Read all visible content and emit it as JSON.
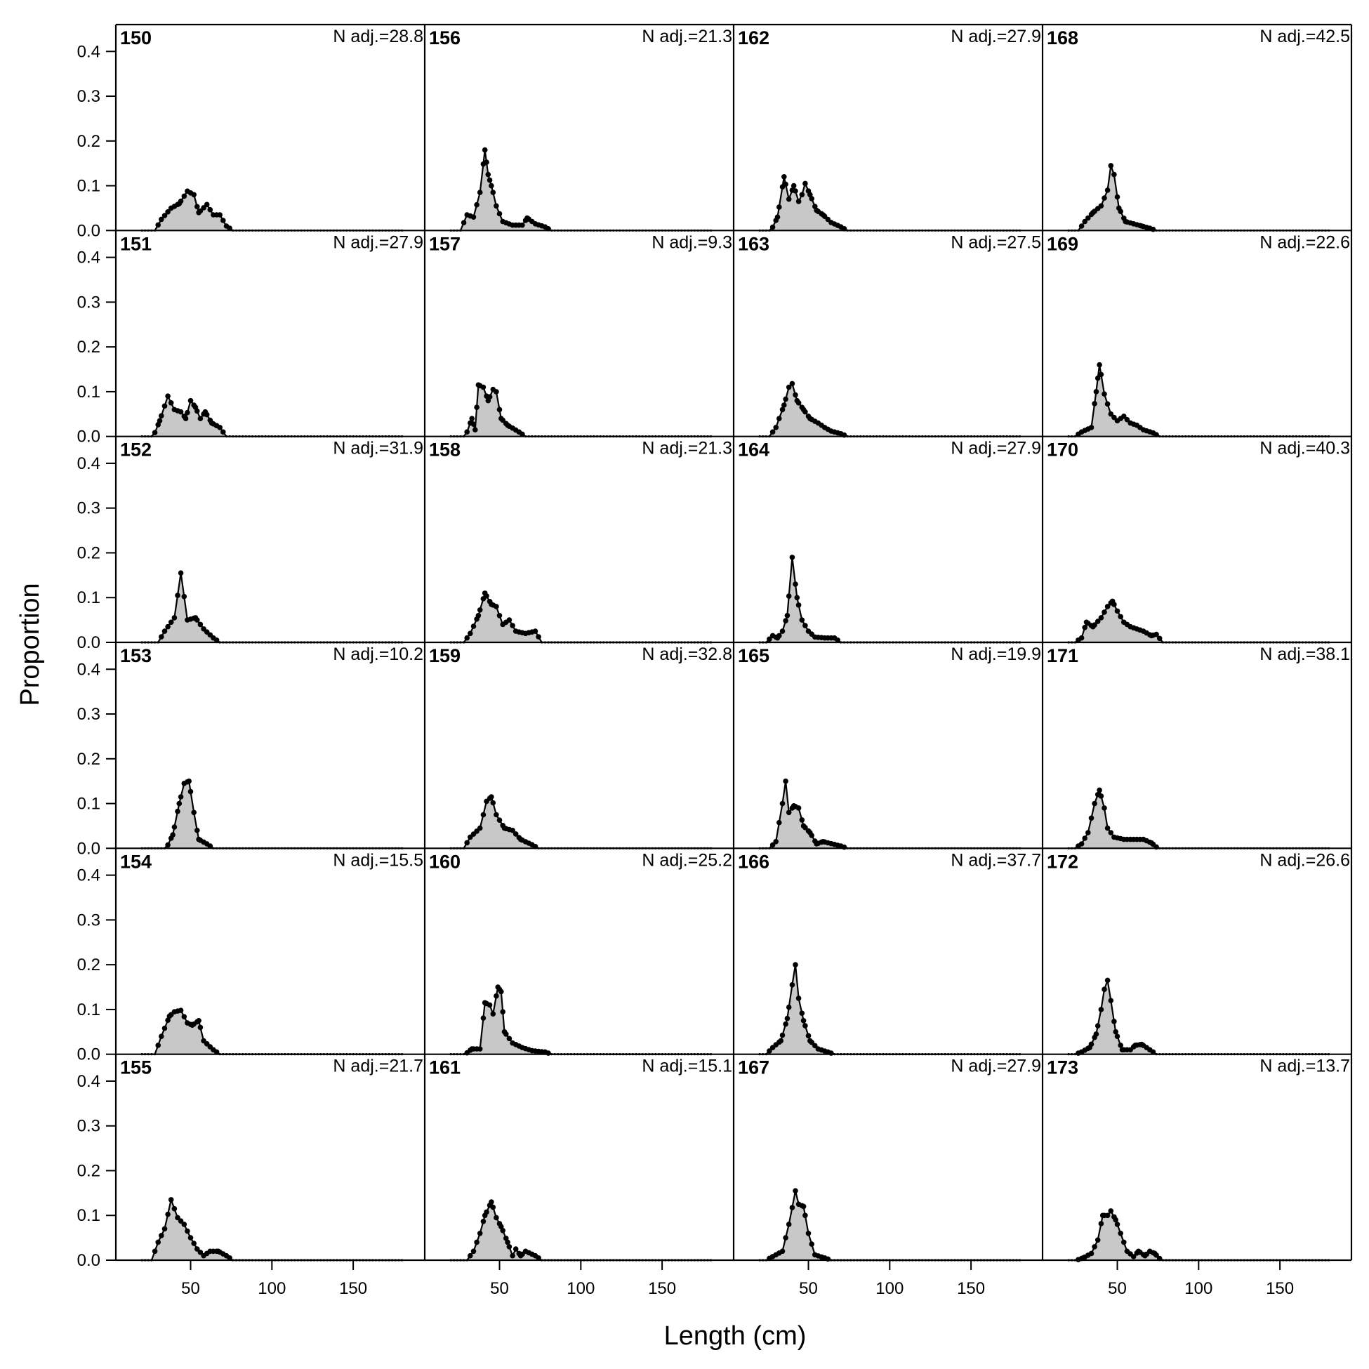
{
  "chart_data": {
    "type": "area",
    "xlabel": "Length (cm)",
    "ylabel": "Proportion",
    "xlim": [
      4,
      194
    ],
    "ylim": [
      0,
      0.46
    ],
    "x_ticks": [
      50,
      100,
      150
    ],
    "y_ticks": [
      0.0,
      0.1,
      0.2,
      0.3,
      0.4
    ],
    "x_tick_labels": [
      "50",
      "100",
      "150"
    ],
    "y_tick_labels": [
      "0.0",
      "0.1",
      "0.2",
      "0.3",
      "0.4"
    ],
    "layout": "6 rows x 4 columns, panels ordered down columns",
    "grid": false,
    "colors": {
      "fill": "#c8c8c8",
      "line": "#000000"
    },
    "panels": [
      {
        "label": "150",
        "n_adj": "N adj.=28.8",
        "peaks": [
          [
            32,
            0.025
          ],
          [
            38,
            0.05
          ],
          [
            43,
            0.06
          ],
          [
            48,
            0.088
          ],
          [
            52,
            0.08
          ],
          [
            55,
            0.04
          ],
          [
            60,
            0.058
          ],
          [
            64,
            0.035
          ],
          [
            68,
            0.035
          ],
          [
            72,
            0.01
          ]
        ]
      },
      {
        "label": "151",
        "n_adj": "N adj.=27.9",
        "peaks": [
          [
            31,
            0.035
          ],
          [
            36,
            0.09
          ],
          [
            40,
            0.06
          ],
          [
            44,
            0.055
          ],
          [
            47,
            0.04
          ],
          [
            50,
            0.08
          ],
          [
            53,
            0.065
          ],
          [
            56,
            0.04
          ],
          [
            59,
            0.055
          ],
          [
            63,
            0.03
          ],
          [
            68,
            0.02
          ]
        ]
      },
      {
        "label": "152",
        "n_adj": "N adj.=31.9",
        "peaks": [
          [
            34,
            0.025
          ],
          [
            40,
            0.055
          ],
          [
            44,
            0.155
          ],
          [
            48,
            0.05
          ],
          [
            53,
            0.055
          ],
          [
            58,
            0.03
          ],
          [
            64,
            0.01
          ]
        ]
      },
      {
        "label": "153",
        "n_adj": "N adj.=10.2",
        "peaks": [
          [
            39,
            0.03
          ],
          [
            43,
            0.1
          ],
          [
            46,
            0.145
          ],
          [
            49,
            0.15
          ],
          [
            52,
            0.08
          ],
          [
            55,
            0.02
          ],
          [
            60,
            0.01
          ]
        ]
      },
      {
        "label": "154",
        "n_adj": "N adj.=15.5",
        "peaks": [
          [
            32,
            0.04
          ],
          [
            37,
            0.085
          ],
          [
            40,
            0.095
          ],
          [
            44,
            0.098
          ],
          [
            48,
            0.07
          ],
          [
            51,
            0.065
          ],
          [
            55,
            0.075
          ],
          [
            58,
            0.03
          ],
          [
            64,
            0.01
          ]
        ]
      },
      {
        "label": "155",
        "n_adj": "N adj.=21.7",
        "peaks": [
          [
            30,
            0.04
          ],
          [
            34,
            0.07
          ],
          [
            38,
            0.135
          ],
          [
            42,
            0.095
          ],
          [
            46,
            0.08
          ],
          [
            50,
            0.05
          ],
          [
            54,
            0.025
          ],
          [
            58,
            0.01
          ],
          [
            62,
            0.02
          ],
          [
            67,
            0.02
          ],
          [
            72,
            0.01
          ]
        ]
      },
      {
        "label": "156",
        "n_adj": "N adj.=21.3",
        "peaks": [
          [
            30,
            0.035
          ],
          [
            34,
            0.03
          ],
          [
            38,
            0.085
          ],
          [
            41,
            0.18
          ],
          [
            43,
            0.125
          ],
          [
            45,
            0.1
          ],
          [
            48,
            0.055
          ],
          [
            52,
            0.02
          ],
          [
            58,
            0.012
          ],
          [
            64,
            0.012
          ],
          [
            67,
            0.028
          ],
          [
            72,
            0.015
          ],
          [
            78,
            0.008
          ]
        ]
      },
      {
        "label": "157",
        "n_adj": "N adj.=9.3",
        "peaks": [
          [
            33,
            0.04
          ],
          [
            35,
            0.015
          ],
          [
            37,
            0.115
          ],
          [
            40,
            0.11
          ],
          [
            43,
            0.08
          ],
          [
            46,
            0.105
          ],
          [
            48,
            0.1
          ],
          [
            51,
            0.04
          ],
          [
            55,
            0.025
          ],
          [
            62,
            0.01
          ]
        ]
      },
      {
        "label": "158",
        "n_adj": "N adj.=21.3",
        "peaks": [
          [
            32,
            0.02
          ],
          [
            37,
            0.06
          ],
          [
            41,
            0.11
          ],
          [
            45,
            0.085
          ],
          [
            48,
            0.08
          ],
          [
            52,
            0.04
          ],
          [
            56,
            0.05
          ],
          [
            60,
            0.025
          ],
          [
            66,
            0.02
          ],
          [
            72,
            0.025
          ]
        ]
      },
      {
        "label": "159",
        "n_adj": "N adj.=32.8",
        "peaks": [
          [
            32,
            0.025
          ],
          [
            38,
            0.045
          ],
          [
            42,
            0.105
          ],
          [
            45,
            0.115
          ],
          [
            48,
            0.075
          ],
          [
            53,
            0.045
          ],
          [
            58,
            0.04
          ],
          [
            63,
            0.02
          ],
          [
            70,
            0.008
          ]
        ]
      },
      {
        "label": "160",
        "n_adj": "N adj.=25.2",
        "peaks": [
          [
            33,
            0.012
          ],
          [
            38,
            0.012
          ],
          [
            41,
            0.115
          ],
          [
            44,
            0.11
          ],
          [
            46,
            0.09
          ],
          [
            49,
            0.15
          ],
          [
            51,
            0.14
          ],
          [
            53,
            0.05
          ],
          [
            58,
            0.025
          ],
          [
            64,
            0.015
          ],
          [
            70,
            0.008
          ],
          [
            78,
            0.005
          ]
        ]
      },
      {
        "label": "161",
        "n_adj": "N adj.=15.1",
        "peaks": [
          [
            34,
            0.02
          ],
          [
            38,
            0.06
          ],
          [
            41,
            0.1
          ],
          [
            45,
            0.13
          ],
          [
            48,
            0.095
          ],
          [
            51,
            0.075
          ],
          [
            55,
            0.04
          ],
          [
            58,
            0.01
          ],
          [
            60,
            0.025
          ],
          [
            63,
            0.01
          ],
          [
            66,
            0.02
          ],
          [
            72,
            0.01
          ]
        ]
      },
      {
        "label": "162",
        "n_adj": "N adj.=27.9",
        "peaks": [
          [
            31,
            0.03
          ],
          [
            35,
            0.12
          ],
          [
            38,
            0.07
          ],
          [
            41,
            0.1
          ],
          [
            44,
            0.065
          ],
          [
            46,
            0.08
          ],
          [
            48,
            0.105
          ],
          [
            51,
            0.08
          ],
          [
            55,
            0.045
          ],
          [
            59,
            0.035
          ],
          [
            64,
            0.018
          ],
          [
            70,
            0.008
          ]
        ]
      },
      {
        "label": "163",
        "n_adj": "N adj.=27.5",
        "peaks": [
          [
            30,
            0.02
          ],
          [
            35,
            0.07
          ],
          [
            38,
            0.11
          ],
          [
            40,
            0.118
          ],
          [
            43,
            0.08
          ],
          [
            47,
            0.06
          ],
          [
            51,
            0.04
          ],
          [
            56,
            0.03
          ],
          [
            60,
            0.02
          ],
          [
            64,
            0.012
          ],
          [
            70,
            0.006
          ]
        ]
      },
      {
        "label": "164",
        "n_adj": "N adj.=27.9",
        "peaks": [
          [
            28,
            0.015
          ],
          [
            31,
            0.01
          ],
          [
            34,
            0.025
          ],
          [
            37,
            0.06
          ],
          [
            40,
            0.19
          ],
          [
            43,
            0.1
          ],
          [
            46,
            0.05
          ],
          [
            50,
            0.025
          ],
          [
            54,
            0.012
          ],
          [
            60,
            0.01
          ],
          [
            66,
            0.01
          ]
        ]
      },
      {
        "label": "165",
        "n_adj": "N adj.=19.9",
        "peaks": [
          [
            30,
            0.015
          ],
          [
            34,
            0.1
          ],
          [
            36,
            0.15
          ],
          [
            38,
            0.08
          ],
          [
            41,
            0.095
          ],
          [
            44,
            0.09
          ],
          [
            47,
            0.05
          ],
          [
            51,
            0.035
          ],
          [
            55,
            0.01
          ],
          [
            59,
            0.015
          ],
          [
            70,
            0.005
          ]
        ]
      },
      {
        "label": "166",
        "n_adj": "N adj.=37.7",
        "peaks": [
          [
            28,
            0.015
          ],
          [
            33,
            0.03
          ],
          [
            37,
            0.08
          ],
          [
            40,
            0.155
          ],
          [
            42,
            0.2
          ],
          [
            44,
            0.125
          ],
          [
            47,
            0.075
          ],
          [
            51,
            0.03
          ],
          [
            56,
            0.012
          ],
          [
            62,
            0.005
          ]
        ]
      },
      {
        "label": "167",
        "n_adj": "N adj.=27.9",
        "peaks": [
          [
            28,
            0.008
          ],
          [
            34,
            0.02
          ],
          [
            38,
            0.08
          ],
          [
            42,
            0.155
          ],
          [
            44,
            0.125
          ],
          [
            47,
            0.12
          ],
          [
            50,
            0.06
          ],
          [
            54,
            0.012
          ],
          [
            60,
            0.005
          ]
        ]
      },
      {
        "label": "168",
        "n_adj": "N adj.=42.5",
        "peaks": [
          [
            30,
            0.02
          ],
          [
            35,
            0.04
          ],
          [
            40,
            0.055
          ],
          [
            44,
            0.09
          ],
          [
            46,
            0.145
          ],
          [
            48,
            0.125
          ],
          [
            51,
            0.05
          ],
          [
            55,
            0.02
          ],
          [
            60,
            0.015
          ],
          [
            65,
            0.01
          ],
          [
            70,
            0.005
          ]
        ]
      },
      {
        "label": "169",
        "n_adj": "N adj.=22.6",
        "peaks": [
          [
            28,
            0.01
          ],
          [
            34,
            0.02
          ],
          [
            37,
            0.1
          ],
          [
            39,
            0.16
          ],
          [
            42,
            0.095
          ],
          [
            46,
            0.05
          ],
          [
            50,
            0.035
          ],
          [
            54,
            0.045
          ],
          [
            58,
            0.03
          ],
          [
            62,
            0.025
          ],
          [
            66,
            0.015
          ],
          [
            72,
            0.008
          ]
        ]
      },
      {
        "label": "170",
        "n_adj": "N adj.=40.3",
        "peaks": [
          [
            28,
            0.01
          ],
          [
            31,
            0.045
          ],
          [
            35,
            0.035
          ],
          [
            40,
            0.055
          ],
          [
            44,
            0.08
          ],
          [
            47,
            0.092
          ],
          [
            50,
            0.07
          ],
          [
            54,
            0.045
          ],
          [
            58,
            0.035
          ],
          [
            62,
            0.03
          ],
          [
            66,
            0.025
          ],
          [
            71,
            0.015
          ],
          [
            74,
            0.018
          ]
        ]
      },
      {
        "label": "171",
        "n_adj": "N adj.=38.1",
        "peaks": [
          [
            28,
            0.01
          ],
          [
            32,
            0.035
          ],
          [
            36,
            0.1
          ],
          [
            39,
            0.13
          ],
          [
            42,
            0.09
          ],
          [
            44,
            0.045
          ],
          [
            48,
            0.025
          ],
          [
            54,
            0.02
          ],
          [
            60,
            0.02
          ],
          [
            66,
            0.02
          ],
          [
            71,
            0.012
          ]
        ]
      },
      {
        "label": "172",
        "n_adj": "N adj.=26.6",
        "peaks": [
          [
            28,
            0.005
          ],
          [
            33,
            0.015
          ],
          [
            37,
            0.045
          ],
          [
            40,
            0.1
          ],
          [
            42,
            0.145
          ],
          [
            44,
            0.165
          ],
          [
            46,
            0.12
          ],
          [
            49,
            0.05
          ],
          [
            53,
            0.01
          ],
          [
            58,
            0.01
          ],
          [
            61,
            0.02
          ],
          [
            65,
            0.022
          ],
          [
            70,
            0.01
          ]
        ]
      },
      {
        "label": "173",
        "n_adj": "N adj.=13.7",
        "peaks": [
          [
            29,
            0.005
          ],
          [
            34,
            0.015
          ],
          [
            38,
            0.045
          ],
          [
            41,
            0.1
          ],
          [
            44,
            0.1
          ],
          [
            46,
            0.11
          ],
          [
            49,
            0.09
          ],
          [
            52,
            0.06
          ],
          [
            56,
            0.02
          ],
          [
            60,
            0.008
          ],
          [
            63,
            0.02
          ],
          [
            67,
            0.01
          ],
          [
            70,
            0.02
          ],
          [
            73,
            0.015
          ]
        ]
      }
    ]
  }
}
